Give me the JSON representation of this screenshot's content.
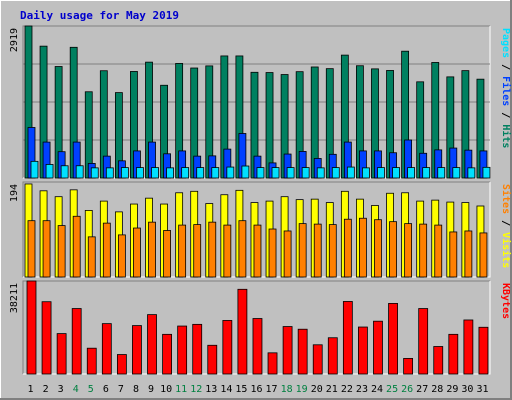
{
  "chart_data": {
    "type": "bar",
    "title": "Daily usage for May 2019",
    "categories": [
      "1",
      "2",
      "3",
      "4",
      "5",
      "6",
      "7",
      "8",
      "9",
      "10",
      "11",
      "12",
      "13",
      "14",
      "15",
      "16",
      "17",
      "18",
      "19",
      "20",
      "21",
      "22",
      "23",
      "24",
      "25",
      "26",
      "27",
      "28",
      "29",
      "30",
      "31"
    ],
    "weekend_days": [
      "4",
      "5",
      "11",
      "12",
      "18",
      "19",
      "25",
      "26"
    ],
    "panels": [
      {
        "name": "hits-files-pages",
        "ymax_label": "2919",
        "ymax": 2919,
        "legend": [
          "Pages",
          "Files",
          "Hits"
        ],
        "legend_separator": " / ",
        "series": [
          {
            "name": "Hits",
            "color": "#008060",
            "values": [
              2919,
              2532,
              2141,
              2510,
              1656,
              2060,
              1640,
              2046,
              2225,
              1781,
              2200,
              2112,
              2153,
              2344,
              2344,
              2030,
              2025,
              1987,
              2042,
              2132,
              2100,
              2360,
              2156,
              2096,
              2065,
              2435,
              1847,
              2219,
              1942,
              2062,
              1898
            ]
          },
          {
            "name": "Files",
            "color": "#0040ff",
            "values": [
              970,
              690,
              505,
              690,
              280,
              420,
              330,
              520,
              690,
              465,
              520,
              420,
              425,
              555,
              855,
              420,
              290,
              460,
              510,
              375,
              455,
              690,
              520,
              520,
              485,
              730,
              475,
              540,
              575,
              535,
              520
            ]
          },
          {
            "name": "Pages",
            "color": "#00e0ff",
            "values": [
              320,
              260,
              235,
              235,
              195,
              195,
              200,
              200,
              200,
              195,
              200,
              200,
              200,
              210,
              230,
              200,
              200,
              200,
              200,
              195,
              200,
              210,
              195,
              200,
              200,
              200,
              200,
              200,
              200,
              195,
              205
            ]
          }
        ]
      },
      {
        "name": "visits-sites",
        "ymax_label": "194",
        "ymax": 194,
        "legend": [
          "Sites",
          "Visits"
        ],
        "legend_separator": " / ",
        "series": [
          {
            "name": "Visits",
            "color": "#ffff00",
            "values": [
              190,
              176,
              164,
              178,
              136,
              155,
              133,
              149,
              161,
              149,
              172,
              175,
              150,
              168,
              177,
              152,
              155,
              164,
              158,
              159,
              152,
              175,
              159,
              146,
              171,
              172,
              155,
              157,
              153,
              152,
              145
            ]
          },
          {
            "name": "Sites",
            "color": "#ff8000",
            "values": [
              115,
              115,
              105,
              124,
              82,
              110,
              86,
              100,
              112,
              95,
              106,
              107,
              112,
              106,
              115,
              106,
              98,
              94,
              109,
              108,
              107,
              118,
              120,
              117,
              113,
              109,
              108,
              106,
              92,
              94,
              90
            ]
          }
        ]
      },
      {
        "name": "kbytes",
        "ymax_label": "38211",
        "ymax": 38211,
        "legend": [
          "KBytes"
        ],
        "legend_separator": "",
        "series": [
          {
            "name": "KBytes",
            "color": "#ff0000",
            "values": [
              38211,
              29700,
              16600,
              26900,
              10600,
              20700,
              8000,
              19900,
              24400,
              16300,
              19700,
              20400,
              11800,
              22000,
              34800,
              22800,
              8700,
              19500,
              18400,
              12000,
              14900,
              29800,
              19300,
              21700,
              29000,
              6400,
              26900,
              11300,
              16300,
              22200,
              19200
            ]
          }
        ]
      }
    ],
    "colors": {
      "background": "#c0c0c0",
      "plot_background": "#c0c0c0",
      "border_light": "#ffffff",
      "border_dark": "#808080",
      "title_color": "#0000cc",
      "weekday_label_color": "#000000",
      "weekend_label_color": "#008040",
      "gridline_color": "#808080"
    },
    "grid": true,
    "legend_position": "right-vertical"
  }
}
